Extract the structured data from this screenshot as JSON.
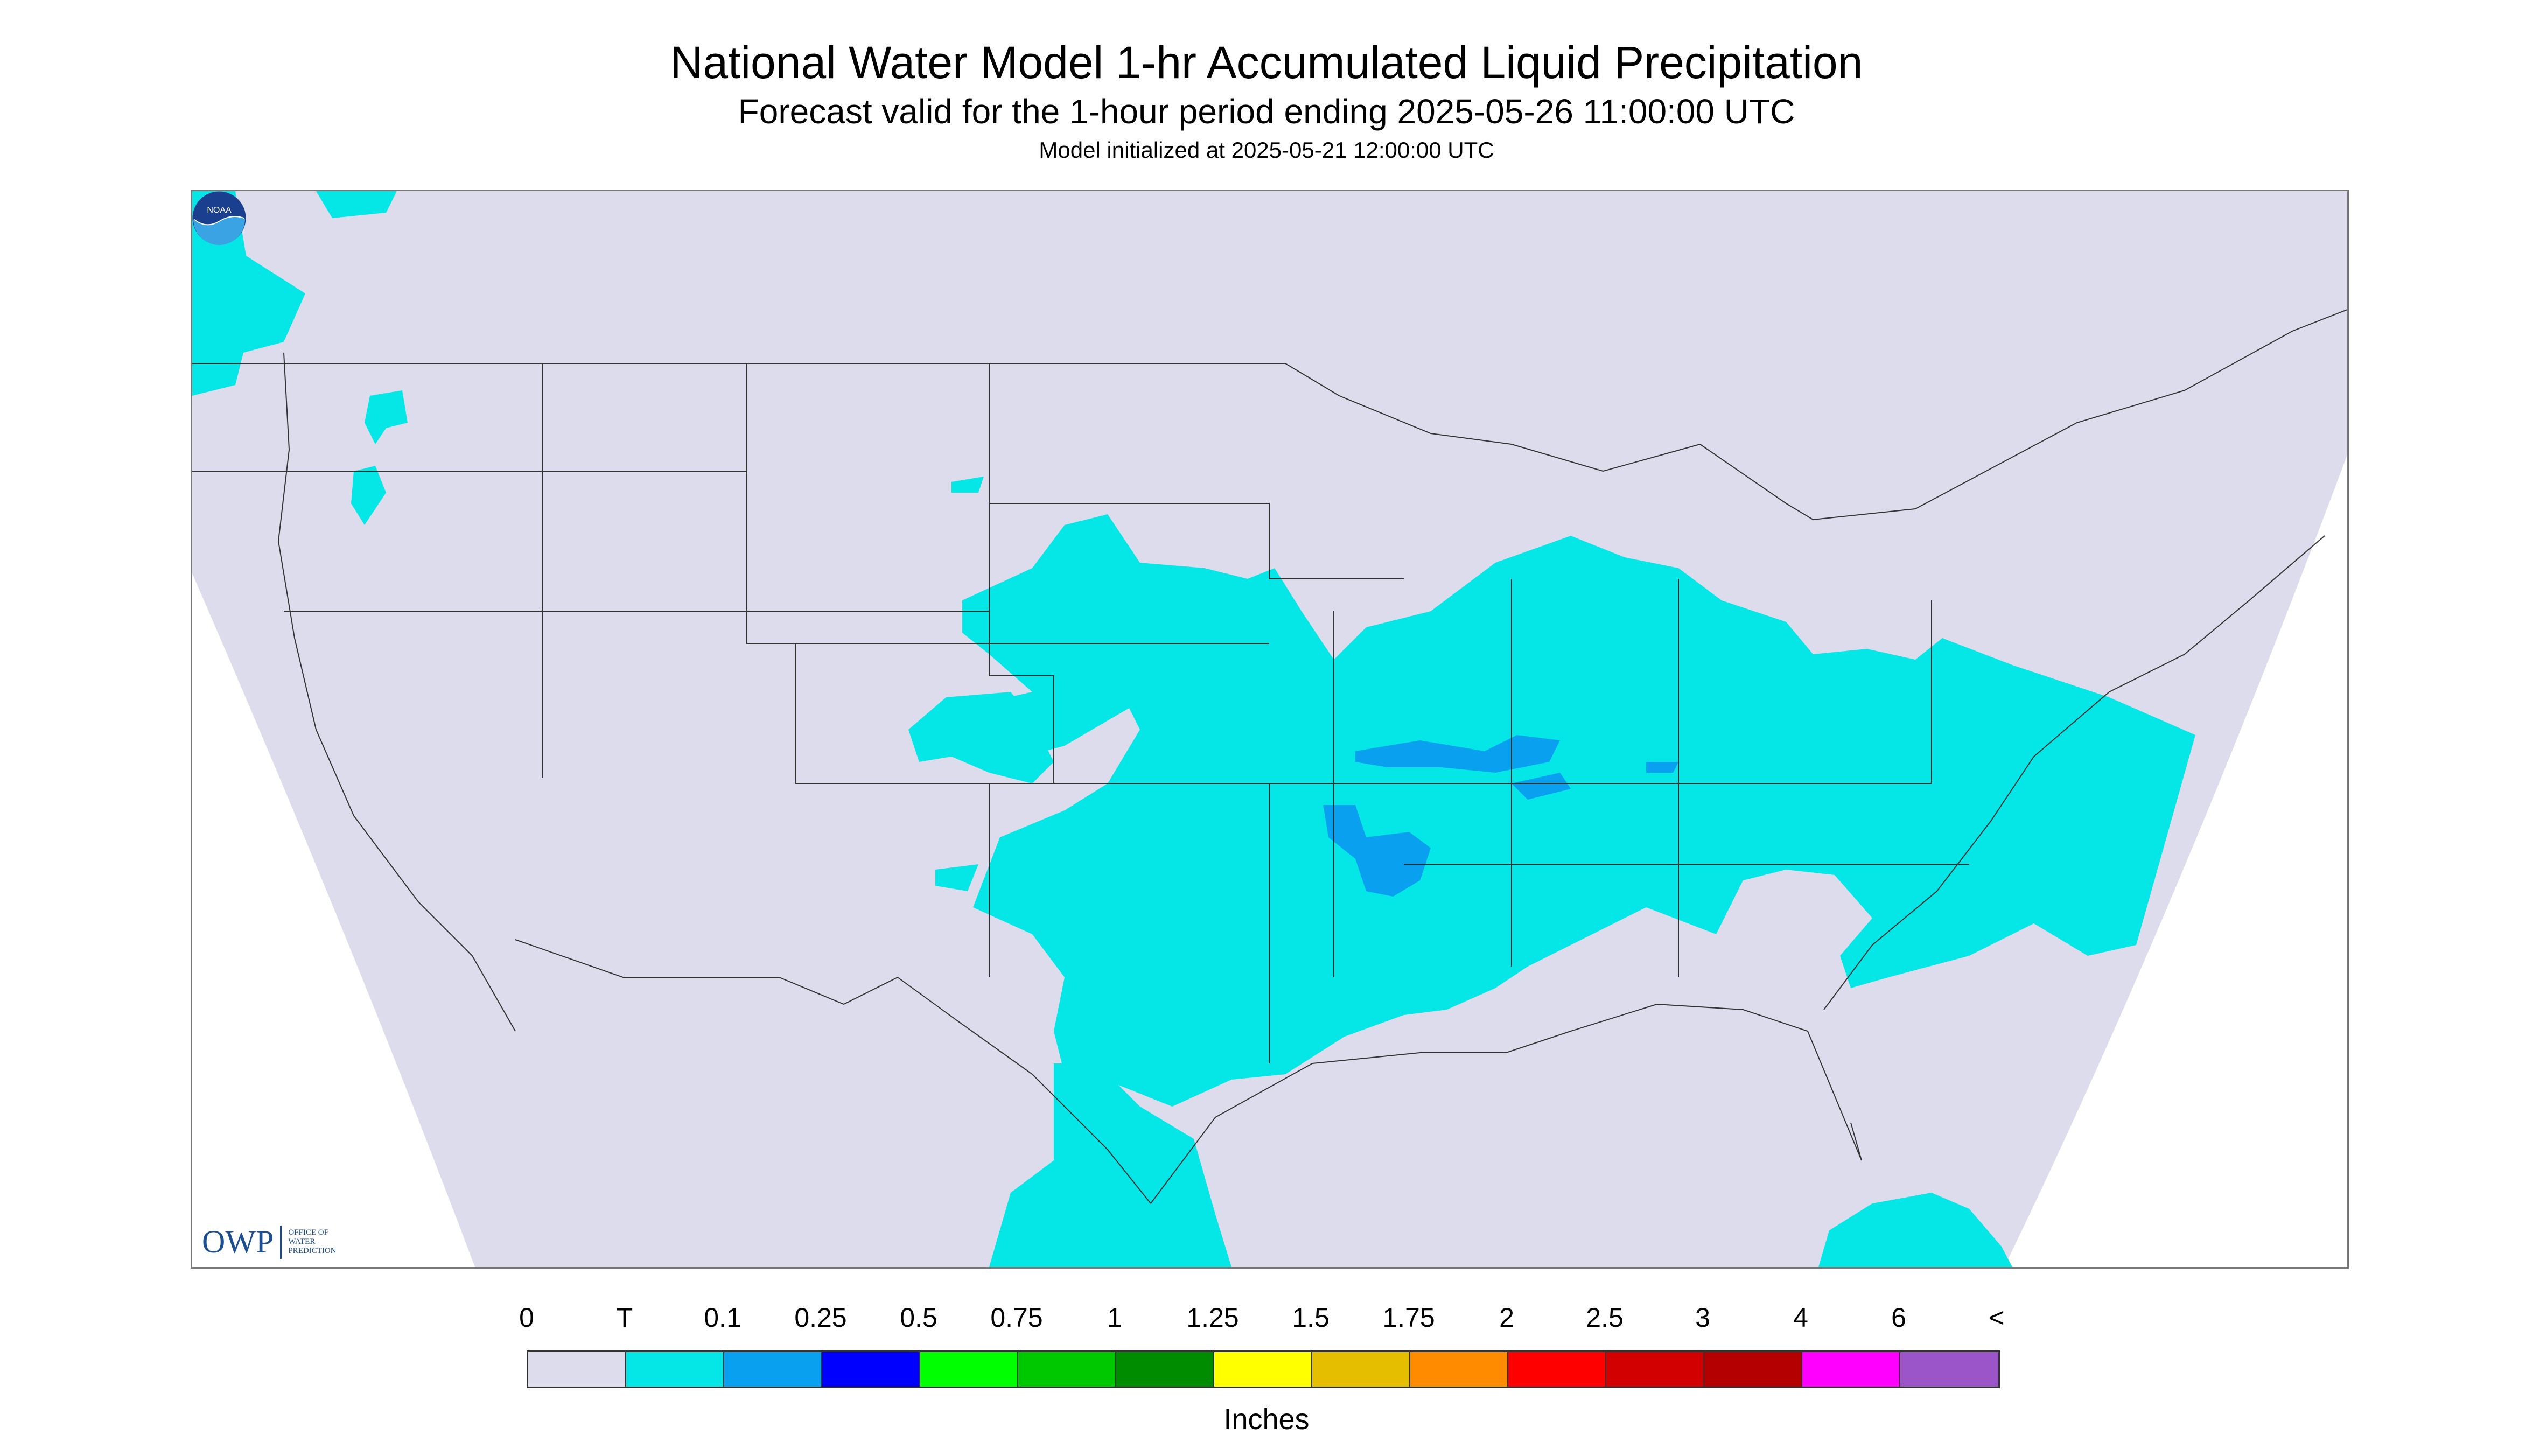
{
  "header": {
    "title": "National Water Model 1-hr Accumulated Liquid Precipitation",
    "subtitle": "Forecast valid for the 1-hour period ending 2025-05-26 11:00:00 UTC",
    "init": "Model initialized at 2025-05-21 12:00:00 UTC"
  },
  "map": {
    "background_color": "#dcdced",
    "precip_color": "#05e6e6",
    "heavier_precip_color": "#0aa0f0",
    "border_color": "#333333"
  },
  "logos": {
    "owp_mark": "OWP",
    "owp_text": [
      "OFFICE OF",
      "WATER",
      "PREDICTION"
    ],
    "noaa_icon": "noaa-logo-icon",
    "noaa_text": "NOAA"
  },
  "legend": {
    "tick_labels": [
      "0",
      "T",
      "0.1",
      "0.25",
      "0.5",
      "0.75",
      "1",
      "1.25",
      "1.5",
      "1.75",
      "2",
      "2.5",
      "3",
      "4",
      "6",
      "<"
    ],
    "colors": [
      "#dcdced",
      "#05e6e6",
      "#0aa0f0",
      "#0000ff",
      "#00ff00",
      "#00c800",
      "#008c00",
      "#ffff00",
      "#e6be00",
      "#ff8c00",
      "#ff0000",
      "#d20000",
      "#b40000",
      "#ff00ff",
      "#9b55c8"
    ],
    "units": "Inches"
  }
}
